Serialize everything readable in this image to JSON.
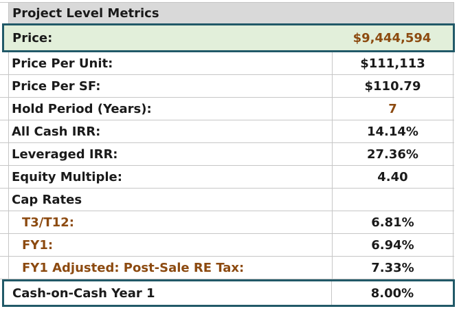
{
  "sheet": {
    "title": "Project Level Metrics",
    "rows": [
      {
        "label": "Price:",
        "value": "$9,444,594"
      },
      {
        "label": "Price Per Unit:",
        "value": "$111,113"
      },
      {
        "label": "Price Per SF:",
        "value": "$110.79"
      },
      {
        "label": "Hold Period (Years):",
        "value": "7"
      },
      {
        "label": "All Cash IRR:",
        "value": "14.14%"
      },
      {
        "label": "Leveraged IRR:",
        "value": "27.36%"
      },
      {
        "label": "Equity Multiple:",
        "value": "4.40"
      },
      {
        "label": "Cap Rates",
        "value": ""
      },
      {
        "label": "T3/T12:",
        "value": "6.81%"
      },
      {
        "label": "FY1:",
        "value": "6.94%"
      },
      {
        "label": "FY1 Adjusted: Post-Sale RE Tax:",
        "value": "7.33%"
      },
      {
        "label": "Cash-on-Cash Year 1",
        "value": "8.00%"
      }
    ],
    "colors": {
      "header_bg": "#d9d9d9",
      "highlight_row_bg": "#e2efda",
      "highlight_border": "#215968",
      "accent_text": "#8c4a10",
      "gridline": "#c6c6c6"
    }
  }
}
